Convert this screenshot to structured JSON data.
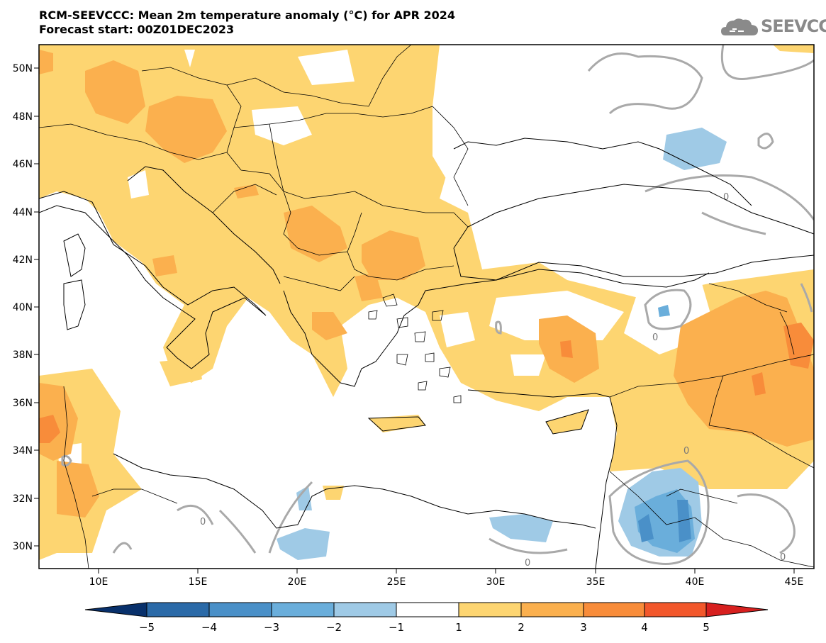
{
  "header": {
    "title": "RCM-SEEVCCC: Mean 2m temperature anomaly (°C) for APR 2024",
    "subtitle": "Forecast start: 00Z01DEC2023"
  },
  "logo": {
    "icon": "cloud-icon",
    "text": "SEEVCCC"
  },
  "map": {
    "lon_range": [
      7,
      46
    ],
    "lat_range": [
      29,
      51
    ],
    "lon_ticks": [
      "10E",
      "15E",
      "20E",
      "25E",
      "30E",
      "35E",
      "40E",
      "45E"
    ],
    "lat_ticks": [
      "50N",
      "48N",
      "46N",
      "44N",
      "42N",
      "40N",
      "38N",
      "36N",
      "34N",
      "32N",
      "30N"
    ],
    "contour_label": "0"
  },
  "colorbar": {
    "ticks": [
      "−5",
      "−4",
      "−3",
      "−2",
      "−1",
      "1",
      "2",
      "3",
      "4",
      "5"
    ],
    "colors": [
      "#08306b",
      "#2b6aa8",
      "#4a90c8",
      "#6aaedb",
      "#9fcae6",
      "#ffffff",
      "#fdd571",
      "#fbb04e",
      "#f88c3a",
      "#f2572b",
      "#d7201f"
    ]
  }
}
